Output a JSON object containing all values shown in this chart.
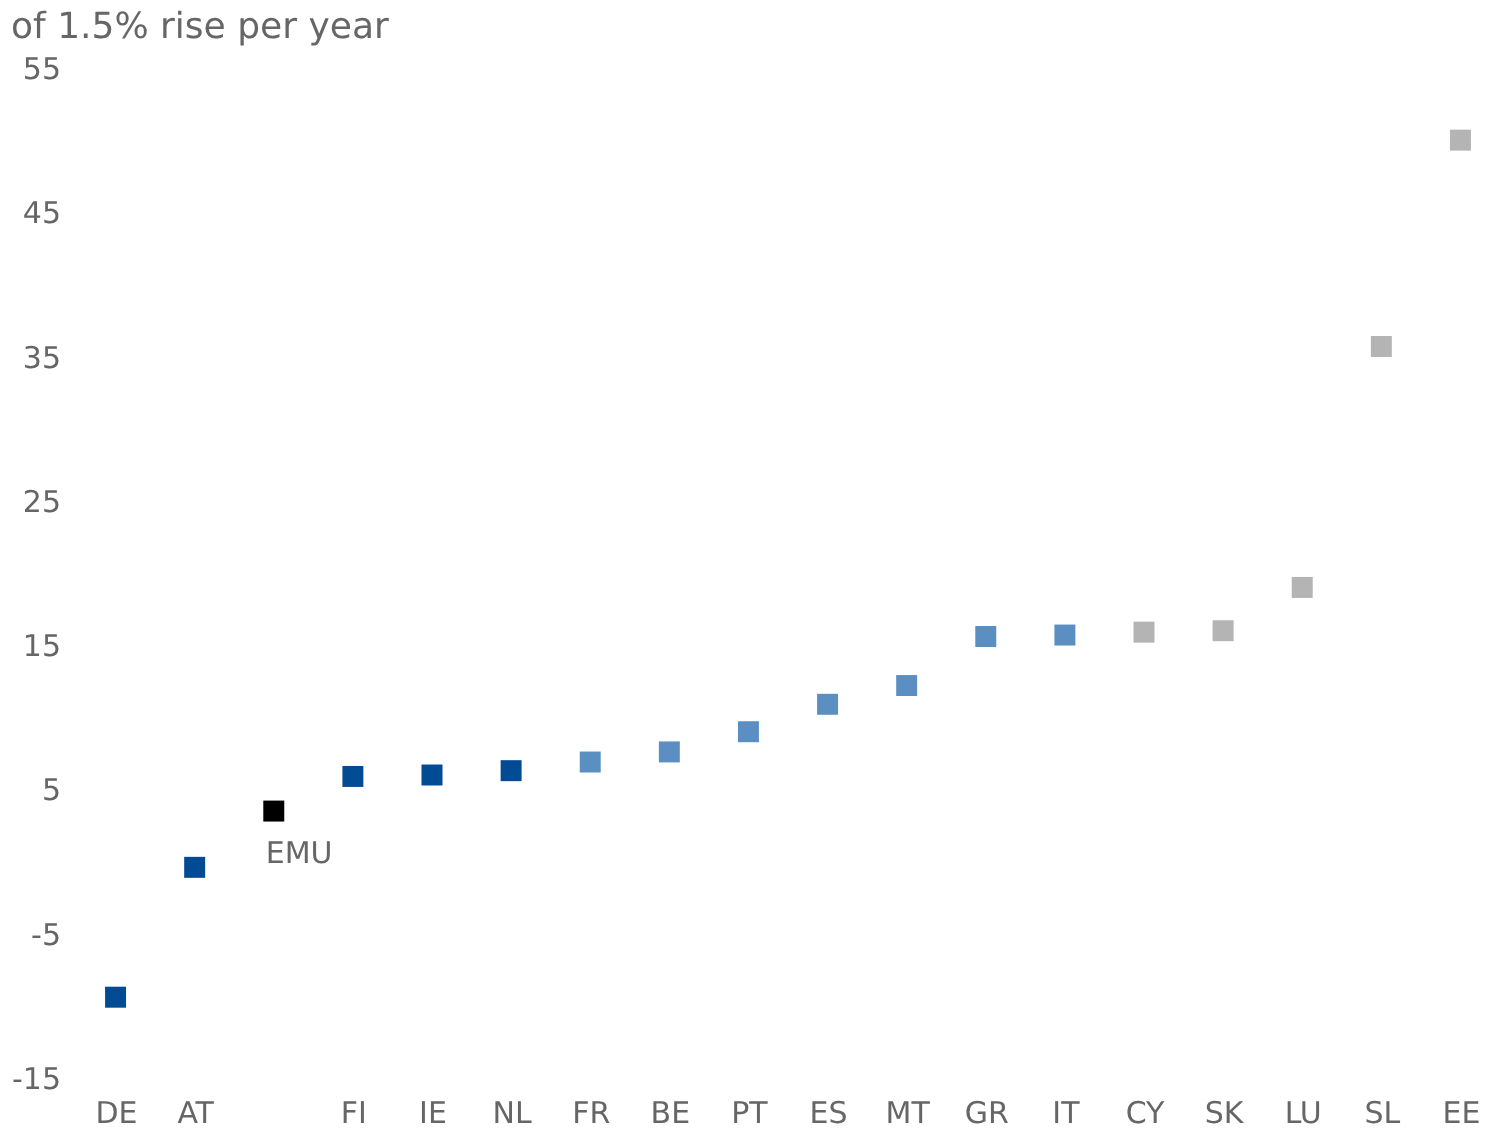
{
  "chart_data": {
    "type": "scatter",
    "title": "of 1.5% rise per year",
    "categories": [
      "DE",
      "AT",
      null,
      "FI",
      "IE",
      "NL",
      "FR",
      "BE",
      "PT",
      "ES",
      "MT",
      "GR",
      "IT",
      "CY",
      "SK",
      "LU",
      "SL",
      "EE"
    ],
    "series": [
      {
        "color": "#004b93",
        "values": [
          -9.4,
          -0.4,
          null,
          5.9,
          6.0,
          6.3,
          null,
          null,
          null,
          null,
          null,
          null,
          null,
          null,
          null,
          null,
          null,
          null
        ]
      },
      {
        "name": "EMU",
        "color": "#000000",
        "values": [
          null,
          null,
          3.5,
          null,
          null,
          null,
          null,
          null,
          null,
          null,
          null,
          null,
          null,
          null,
          null,
          null,
          null,
          null
        ]
      },
      {
        "color": "#5b8fc2",
        "values": [
          null,
          null,
          null,
          null,
          null,
          null,
          6.9,
          7.6,
          9.0,
          10.9,
          12.2,
          15.6,
          15.7,
          null,
          null,
          null,
          null,
          null
        ]
      },
      {
        "color": "#b4b4b4",
        "values": [
          null,
          null,
          null,
          null,
          null,
          null,
          null,
          null,
          null,
          null,
          null,
          null,
          null,
          15.9,
          16.0,
          19.0,
          35.7,
          50.0
        ]
      }
    ],
    "ylim": [
      -15,
      55
    ],
    "yticks": [
      -15,
      -5,
      5,
      15,
      25,
      35,
      45,
      55
    ],
    "grid": false,
    "marker": "square"
  }
}
